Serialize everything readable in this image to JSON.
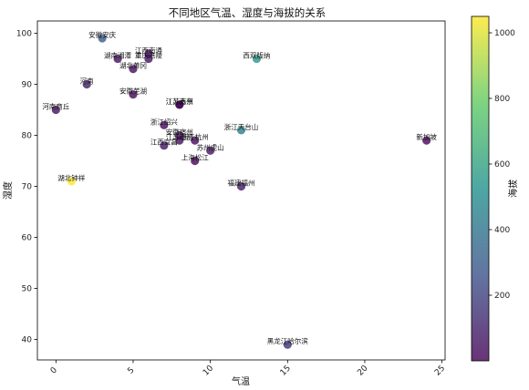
{
  "chart_data": {
    "type": "scatter",
    "title": "不同地区气温、湿度与海拔的关系",
    "xlabel": "气温",
    "ylabel": "湿度",
    "colorbar_label": "海拔",
    "xlim": [
      -1.2,
      25.2
    ],
    "ylim": [
      36,
      102.4
    ],
    "x_ticks": [
      0,
      5,
      10,
      15,
      20,
      25
    ],
    "y_ticks": [
      40,
      50,
      60,
      70,
      80,
      90,
      100
    ],
    "color_range": [
      0,
      1050
    ],
    "colorbar_ticks": [
      200,
      400,
      600,
      800,
      1000
    ],
    "colormap": [
      "#440154",
      "#3b528b",
      "#21918c",
      "#5ec962",
      "#fde725"
    ],
    "grid": false,
    "points": [
      {
        "label": "安徽安庆",
        "x": 3,
        "y": 99,
        "elevation": 300
      },
      {
        "label": "江西南通",
        "x": 6,
        "y": 96,
        "elevation": 30
      },
      {
        "label": "重庆涪陵",
        "x": 6,
        "y": 95,
        "elevation": 60
      },
      {
        "label": "西双版纳",
        "x": 13,
        "y": 95,
        "elevation": 550
      },
      {
        "label": "湖南湘潭",
        "x": 4,
        "y": 95,
        "elevation": 50
      },
      {
        "label": "湖北黄冈",
        "x": 5,
        "y": 93,
        "elevation": 40
      },
      {
        "label": "河南",
        "x": 2,
        "y": 90,
        "elevation": 90
      },
      {
        "label": "安徽芜湖",
        "x": 5,
        "y": 88,
        "elevation": 20
      },
      {
        "label": "江苏南京",
        "x": 8,
        "y": 86,
        "elevation": 15
      },
      {
        "label": "江苏苏州",
        "x": 8,
        "y": 86,
        "elevation": 10
      },
      {
        "label": "河南商丘",
        "x": 0,
        "y": 85,
        "elevation": 50
      },
      {
        "label": "浙江绍兴",
        "x": 7,
        "y": 82,
        "elevation": 20
      },
      {
        "label": "浙江天台山",
        "x": 12,
        "y": 81,
        "elevation": 450
      },
      {
        "label": "安徽宿州",
        "x": 8,
        "y": 80,
        "elevation": 30
      },
      {
        "label": "浙江杭州",
        "x": 9,
        "y": 79,
        "elevation": 20
      },
      {
        "label": "江苏南昌",
        "x": 8,
        "y": 79,
        "elevation": 40
      },
      {
        "label": "新加坡",
        "x": 24,
        "y": 79,
        "elevation": 15
      },
      {
        "label": "江西宜昌",
        "x": 7,
        "y": 78,
        "elevation": 60
      },
      {
        "label": "苏州虎山",
        "x": 10,
        "y": 77,
        "elevation": 50
      },
      {
        "label": "上海松江",
        "x": 9,
        "y": 75,
        "elevation": 10
      },
      {
        "label": "湖北钟祥",
        "x": 1,
        "y": 71,
        "elevation": 1050
      },
      {
        "label": "福建福州",
        "x": 12,
        "y": 70,
        "elevation": 80
      },
      {
        "label": "黑龙江哈尔滨",
        "x": 15,
        "y": 39,
        "elevation": 150
      }
    ]
  }
}
